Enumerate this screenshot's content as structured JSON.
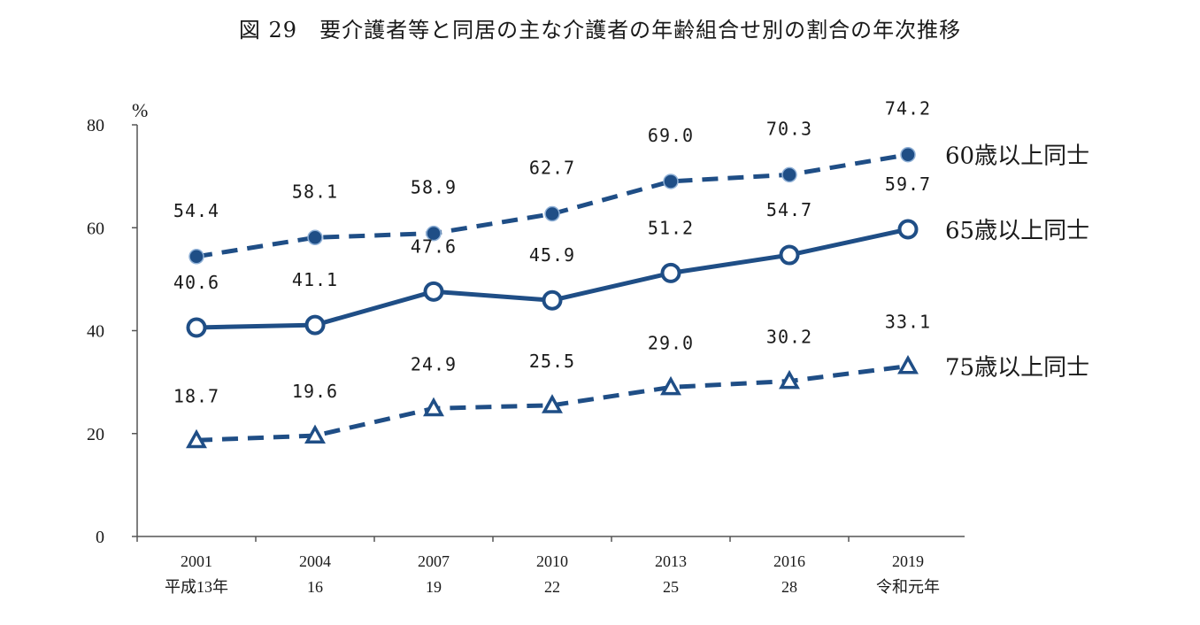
{
  "title": "図 29　要介護者等と同居の主な介護者の年齢組合せ別の割合の年次推移",
  "chart_data": {
    "type": "line",
    "title": "図 29　要介護者等と同居の主な介護者の年齢組合せ別の割合の年次推移",
    "ylabel": "%",
    "ylim": [
      0,
      80
    ],
    "yticks": [
      0,
      20,
      40,
      60,
      80
    ],
    "grid": false,
    "categories": [
      {
        "year": "2001",
        "era": "平成13年"
      },
      {
        "year": "2004",
        "era": "16"
      },
      {
        "year": "2007",
        "era": "19"
      },
      {
        "year": "2010",
        "era": "22"
      },
      {
        "year": "2013",
        "era": "25"
      },
      {
        "year": "2016",
        "era": "28"
      },
      {
        "year": "2019",
        "era": "令和元年"
      }
    ],
    "series": [
      {
        "name": "60歳以上同士",
        "values": [
          54.4,
          58.1,
          58.9,
          62.7,
          69.0,
          70.3,
          74.2
        ],
        "labels": [
          "54.4",
          "58.1",
          "58.9",
          "62.7",
          "69.0",
          "70.3",
          "74.2"
        ],
        "line_style": "dashed",
        "marker": "filled-circle",
        "color": "#1f4e86"
      },
      {
        "name": "65歳以上同士",
        "values": [
          40.6,
          41.1,
          47.6,
          45.9,
          51.2,
          54.7,
          59.7
        ],
        "labels": [
          "40.6",
          "41.1",
          "47.6",
          "45.9",
          "51.2",
          "54.7",
          "59.7"
        ],
        "line_style": "solid",
        "marker": "open-circle",
        "color": "#1f4e86"
      },
      {
        "name": "75歳以上同士",
        "values": [
          18.7,
          19.6,
          24.9,
          25.5,
          29.0,
          30.2,
          33.1
        ],
        "labels": [
          "18.7",
          "19.6",
          "24.9",
          "25.5",
          "29.0",
          "30.2",
          "33.1"
        ],
        "line_style": "dashed",
        "marker": "open-triangle",
        "color": "#1f4e86"
      }
    ]
  }
}
